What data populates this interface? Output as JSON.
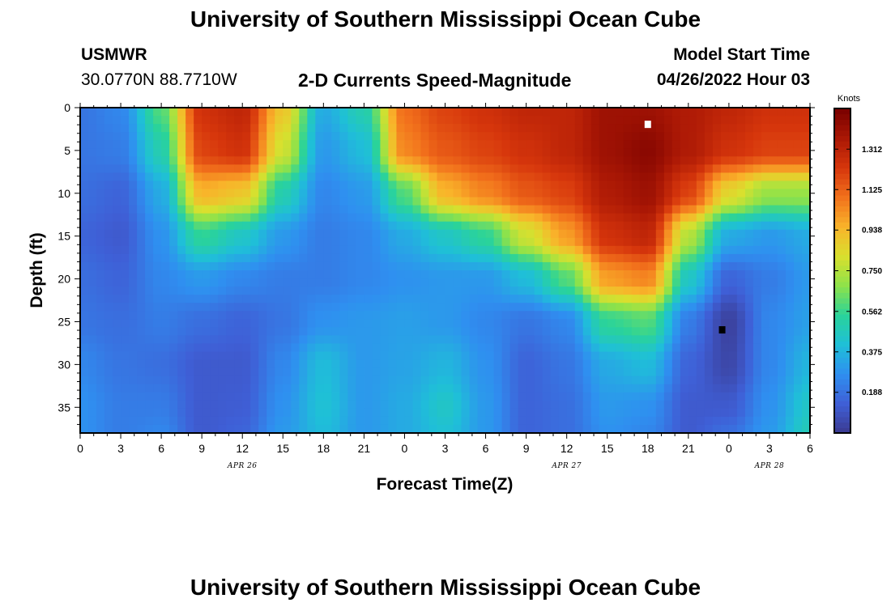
{
  "header": {
    "title": "University of Southern Mississippi Ocean Cube",
    "station": "USMWR",
    "coords": "30.0770N  88.7710W",
    "subtitle": "2-D Currents Speed-Magnitude",
    "model_start_label": "Model Start Time",
    "model_start_value": "04/26/2022 Hour 03"
  },
  "footer": {
    "title": "University of Southern Mississippi Ocean Cube"
  },
  "colors": {
    "colormap": [
      "#3b3a8f",
      "#3f5fd6",
      "#2f8ff0",
      "#1fbfd8",
      "#2ad39a",
      "#8ee24a",
      "#d9e02e",
      "#f9b32a",
      "#f2711c",
      "#d6360c",
      "#ab1805",
      "#780000"
    ]
  },
  "chart_data": {
    "type": "heatmap",
    "title": "2-D Currents Speed-Magnitude",
    "xlabel": "Forecast Time(Z)",
    "ylabel": "Depth (ft)",
    "x_range_hours": [
      0,
      54
    ],
    "x_tick_labels": [
      "0",
      "3",
      "6",
      "9",
      "12",
      "15",
      "18",
      "21",
      "0",
      "3",
      "6",
      "9",
      "12",
      "15",
      "18",
      "21",
      "0",
      "3",
      "6"
    ],
    "date_labels": [
      "APR 26",
      "APR 27",
      "APR 28"
    ],
    "y_ticks": [
      0,
      5,
      10,
      15,
      20,
      25,
      30,
      35
    ],
    "ylim": [
      0,
      38
    ],
    "y_inverted": true,
    "colorbar": {
      "title": "Knots",
      "range": [
        0,
        1.5
      ],
      "tick_values": [
        0.188,
        0.375,
        0.562,
        0.75,
        0.938,
        1.125,
        1.312
      ],
      "tick_labels": [
        "0.188",
        "0.375",
        "0.562",
        "0.750",
        "0.938",
        "1.125",
        "1.312"
      ]
    },
    "x": [
      0,
      3,
      6,
      9,
      12,
      15,
      18,
      21,
      24,
      27,
      30,
      33,
      36,
      39,
      42,
      45,
      48,
      51,
      54
    ],
    "depths": [
      0,
      5,
      10,
      15,
      20,
      25,
      30,
      35,
      38
    ],
    "values": [
      [
        0.2,
        0.25,
        0.6,
        1.25,
        1.3,
        0.9,
        0.35,
        0.5,
        1.1,
        1.2,
        1.25,
        1.3,
        1.3,
        1.4,
        1.4,
        1.35,
        1.3,
        1.25,
        1.25
      ],
      [
        0.2,
        0.22,
        0.5,
        1.2,
        1.25,
        0.8,
        0.3,
        0.4,
        1.05,
        1.15,
        1.2,
        1.25,
        1.3,
        1.4,
        1.45,
        1.35,
        1.25,
        1.2,
        1.2
      ],
      [
        0.18,
        0.15,
        0.35,
        0.95,
        0.9,
        0.5,
        0.25,
        0.3,
        0.6,
        0.95,
        1.05,
        1.15,
        1.2,
        1.35,
        1.4,
        1.2,
        0.85,
        0.7,
        0.7
      ],
      [
        0.15,
        0.12,
        0.28,
        0.55,
        0.45,
        0.3,
        0.22,
        0.25,
        0.35,
        0.45,
        0.55,
        0.8,
        1.0,
        1.25,
        1.3,
        0.75,
        0.35,
        0.3,
        0.35
      ],
      [
        0.18,
        0.15,
        0.25,
        0.3,
        0.25,
        0.22,
        0.22,
        0.25,
        0.28,
        0.3,
        0.3,
        0.4,
        0.6,
        1.0,
        1.05,
        0.45,
        0.15,
        0.22,
        0.3
      ],
      [
        0.2,
        0.18,
        0.22,
        0.18,
        0.15,
        0.2,
        0.28,
        0.3,
        0.32,
        0.3,
        0.25,
        0.2,
        0.25,
        0.55,
        0.6,
        0.22,
        0.03,
        0.25,
        0.32
      ],
      [
        0.25,
        0.2,
        0.18,
        0.12,
        0.12,
        0.25,
        0.4,
        0.3,
        0.33,
        0.38,
        0.28,
        0.15,
        0.2,
        0.35,
        0.4,
        0.15,
        0.05,
        0.25,
        0.38
      ],
      [
        0.28,
        0.22,
        0.22,
        0.12,
        0.13,
        0.28,
        0.42,
        0.3,
        0.35,
        0.45,
        0.3,
        0.15,
        0.18,
        0.3,
        0.28,
        0.12,
        0.12,
        0.28,
        0.45
      ],
      [
        0.28,
        0.22,
        0.25,
        0.12,
        0.15,
        0.3,
        0.4,
        0.3,
        0.35,
        0.42,
        0.3,
        0.15,
        0.18,
        0.28,
        0.25,
        0.12,
        0.18,
        0.3,
        0.48
      ]
    ],
    "markers": [
      {
        "name": "max-marker",
        "hour": 42,
        "depth": 2,
        "color": "#ffffff"
      },
      {
        "name": "min-marker",
        "hour": 47.5,
        "depth": 26,
        "color": "#000000"
      }
    ]
  }
}
